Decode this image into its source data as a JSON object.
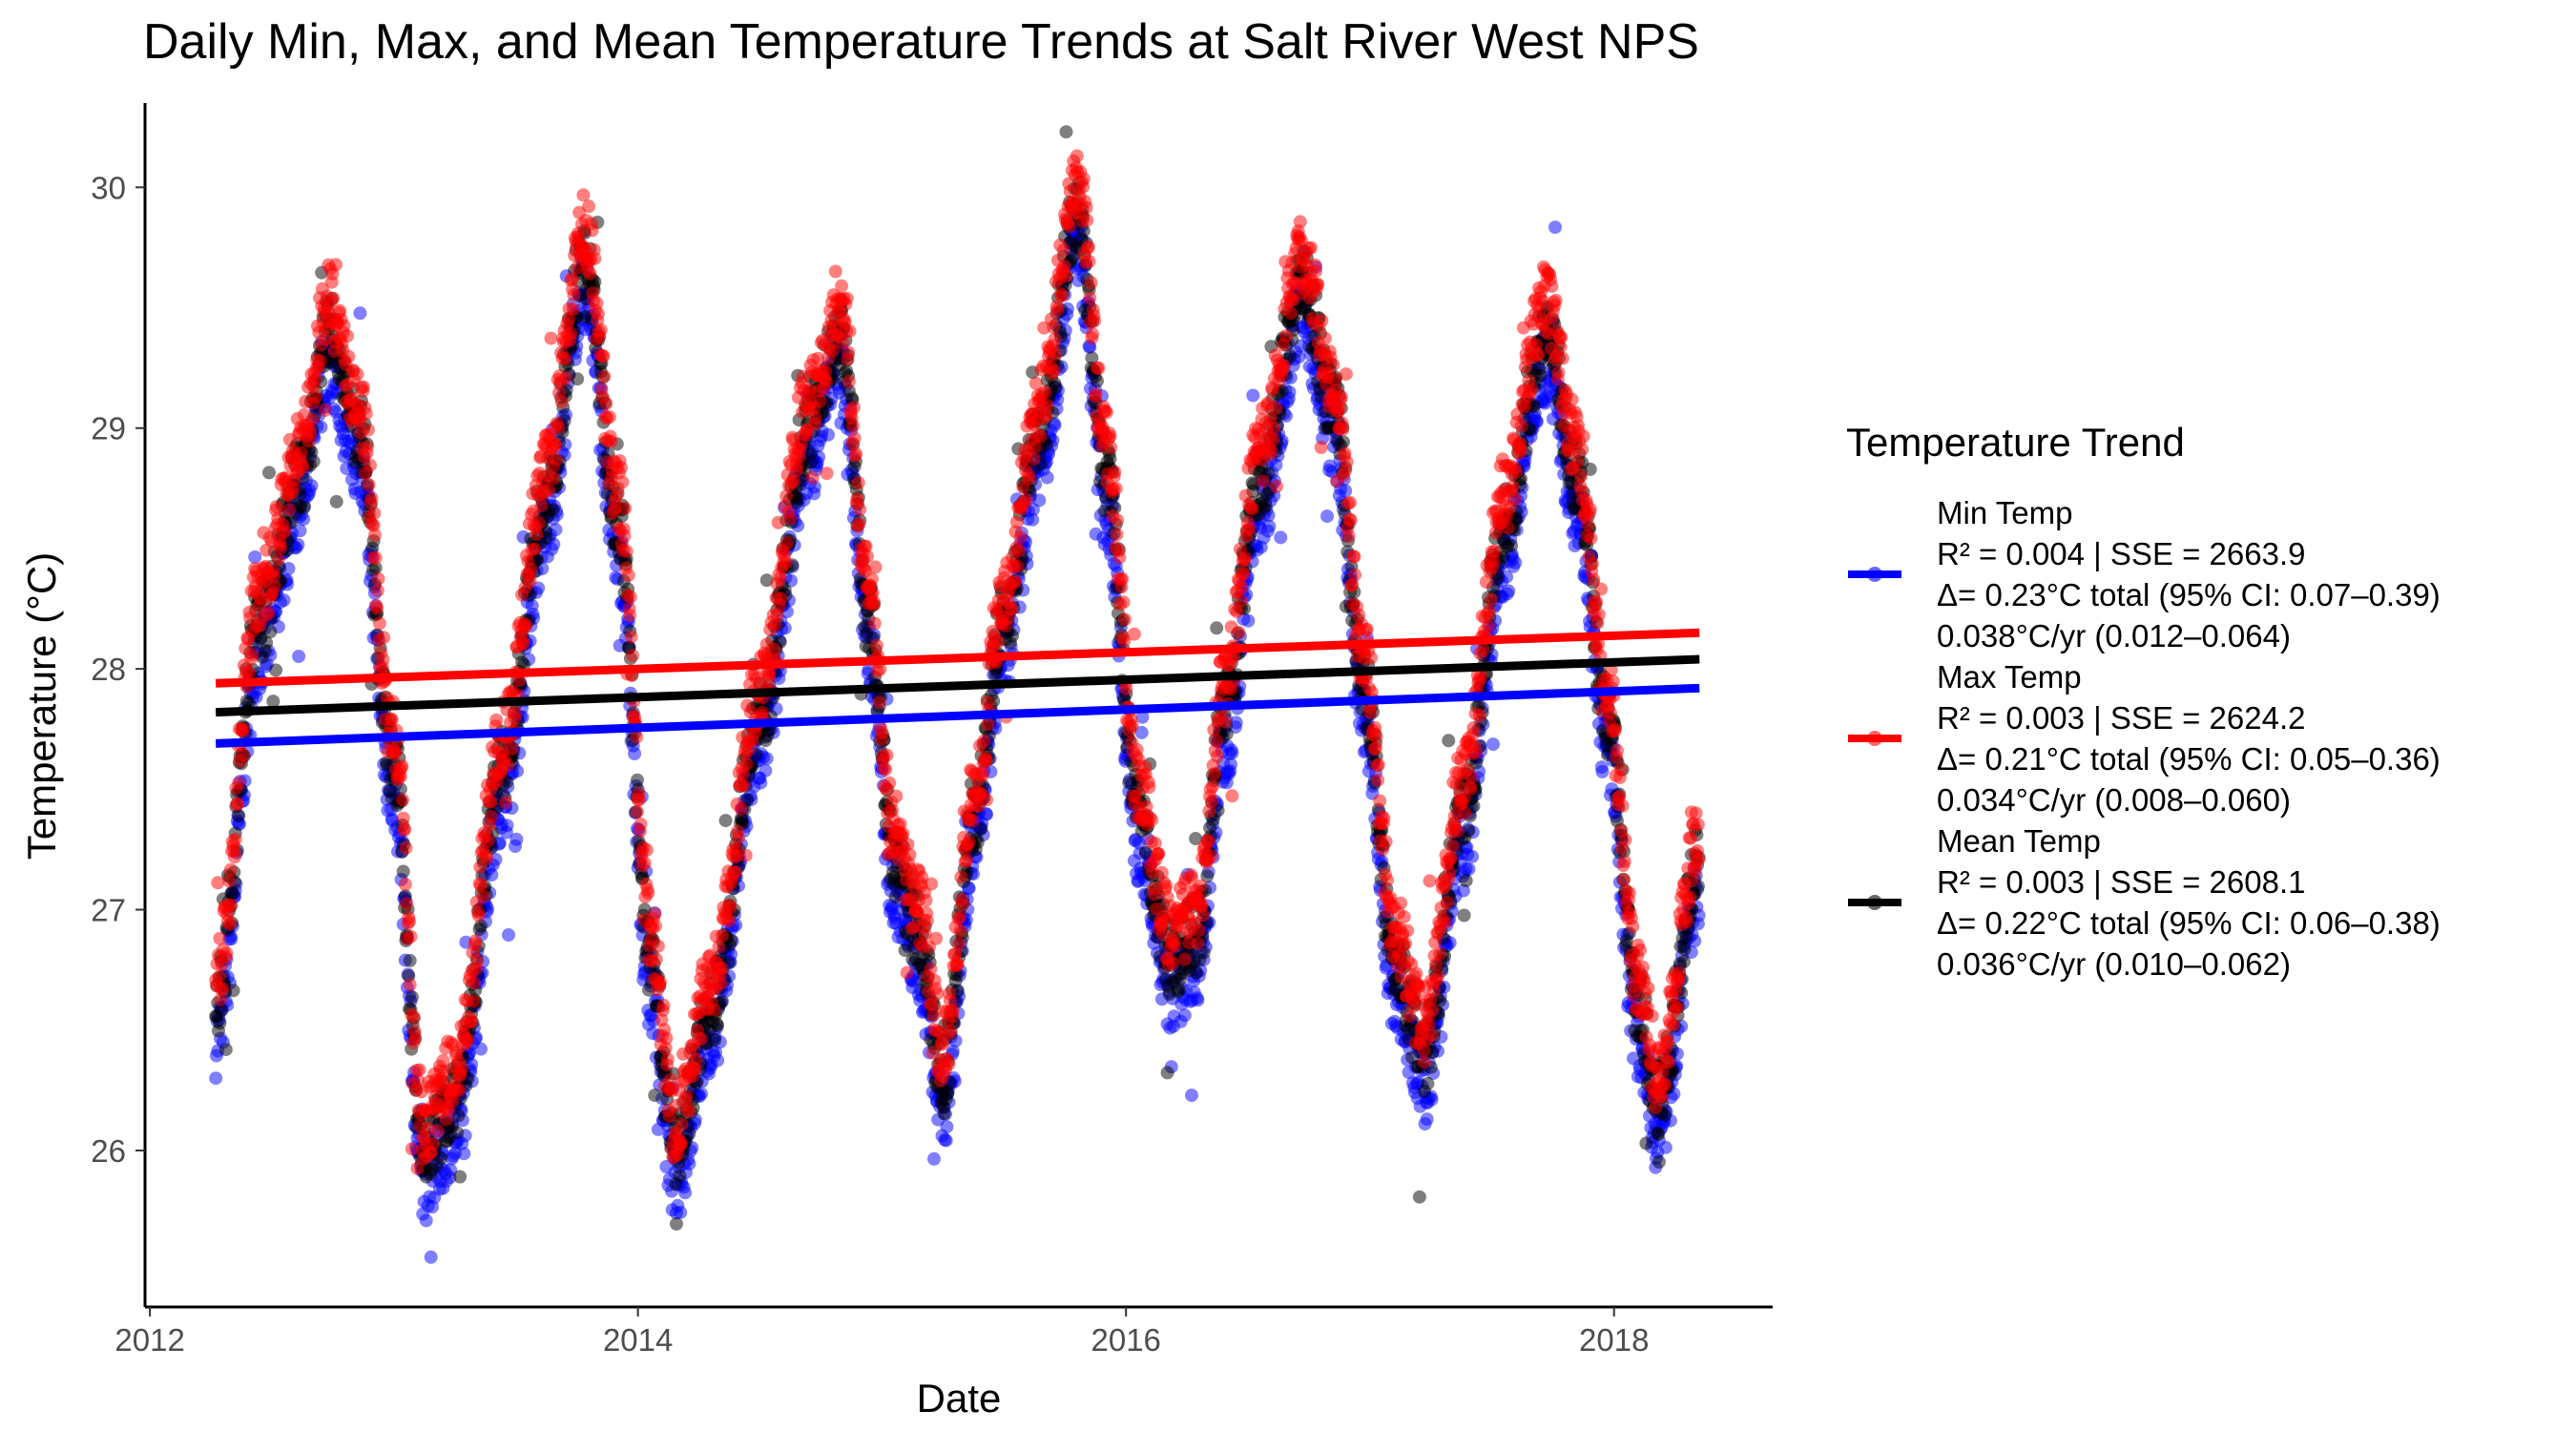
{
  "chart_data": {
    "type": "scatter",
    "title": "Daily Min, Max, and Mean Temperature Trends at Salt River West NPS",
    "xlabel": "Date",
    "ylabel": "Temperature (°C)",
    "x_ticks": [
      "2012",
      "2014",
      "2016",
      "2018"
    ],
    "x_tick_values": [
      2012.0,
      2014.0,
      2016.0,
      2018.0
    ],
    "y_ticks": [
      "26",
      "27",
      "28",
      "29",
      "30"
    ],
    "y_tick_values": [
      26,
      27,
      28,
      29,
      30
    ],
    "xlim": [
      2011.98,
      2018.65
    ],
    "ylim": [
      25.35,
      30.35
    ],
    "grid": false,
    "legend_position": "right",
    "legend_title": "Temperature Trend",
    "seasonal_profile": {
      "description_points": [
        {
          "x": 2012.27,
          "y": 26.6
        },
        {
          "x": 2012.45,
          "y": 28.2
        },
        {
          "x": 2012.62,
          "y": 28.8
        },
        {
          "x": 2012.73,
          "y": 29.4
        },
        {
          "x": 2012.85,
          "y": 29.0
        },
        {
          "x": 2013.0,
          "y": 27.6
        },
        {
          "x": 2013.12,
          "y": 26.0
        },
        {
          "x": 2013.25,
          "y": 26.2
        },
        {
          "x": 2013.45,
          "y": 27.6
        },
        {
          "x": 2013.62,
          "y": 28.7
        },
        {
          "x": 2013.78,
          "y": 29.7
        },
        {
          "x": 2013.92,
          "y": 28.6
        },
        {
          "x": 2014.05,
          "y": 26.8
        },
        {
          "x": 2014.15,
          "y": 26.0
        },
        {
          "x": 2014.3,
          "y": 26.6
        },
        {
          "x": 2014.5,
          "y": 27.8
        },
        {
          "x": 2014.7,
          "y": 29.0
        },
        {
          "x": 2014.83,
          "y": 29.4
        },
        {
          "x": 2014.95,
          "y": 28.2
        },
        {
          "x": 2015.05,
          "y": 27.2
        },
        {
          "x": 2015.15,
          "y": 26.9
        },
        {
          "x": 2015.25,
          "y": 26.3
        },
        {
          "x": 2015.38,
          "y": 27.4
        },
        {
          "x": 2015.5,
          "y": 28.2
        },
        {
          "x": 2015.65,
          "y": 29.0
        },
        {
          "x": 2015.8,
          "y": 29.9
        },
        {
          "x": 2015.92,
          "y": 28.8
        },
        {
          "x": 2016.05,
          "y": 27.4
        },
        {
          "x": 2016.18,
          "y": 26.8
        },
        {
          "x": 2016.3,
          "y": 26.9
        },
        {
          "x": 2016.4,
          "y": 27.8
        },
        {
          "x": 2016.55,
          "y": 28.8
        },
        {
          "x": 2016.72,
          "y": 29.6
        },
        {
          "x": 2016.85,
          "y": 29.1
        },
        {
          "x": 2016.98,
          "y": 27.9
        },
        {
          "x": 2017.1,
          "y": 26.8
        },
        {
          "x": 2017.22,
          "y": 26.4
        },
        {
          "x": 2017.38,
          "y": 27.4
        },
        {
          "x": 2017.55,
          "y": 28.6
        },
        {
          "x": 2017.72,
          "y": 29.4
        },
        {
          "x": 2017.85,
          "y": 28.8
        },
        {
          "x": 2017.97,
          "y": 27.8
        },
        {
          "x": 2018.1,
          "y": 26.6
        },
        {
          "x": 2018.18,
          "y": 26.2
        },
        {
          "x": 2018.35,
          "y": 27.2
        }
      ]
    },
    "series": [
      {
        "name": "Min Temp",
        "color": "#0000ff",
        "offset_from_mean": -0.14,
        "legend_lines": [
          "R² = 0.004 | SSE = 2663.9",
          "Δ= 0.23°C total (95% CI: 0.07–0.39)",
          "0.038°C/yr (0.012–0.064)"
        ],
        "trend": {
          "x": [
            2012.27,
            2018.35
          ],
          "y": [
            27.69,
            27.92
          ]
        }
      },
      {
        "name": "Max Temp",
        "color": "#ff0000",
        "offset_from_mean": 0.12,
        "legend_lines": [
          "R² = 0.003 | SSE = 2624.2",
          "Δ= 0.21°C total (95% CI: 0.05–0.36)",
          "0.034°C/yr (0.008–0.060)"
        ],
        "trend": {
          "x": [
            2012.27,
            2018.35
          ],
          "y": [
            27.94,
            28.15
          ]
        }
      },
      {
        "name": "Mean Temp",
        "color": "#000000",
        "offset_from_mean": 0.0,
        "legend_lines": [
          "R² = 0.003 | SSE = 2608.1",
          "Δ= 0.22°C total (95% CI: 0.06–0.38)",
          "0.036°C/yr (0.010–0.062)"
        ],
        "trend": {
          "x": [
            2012.27,
            2018.35
          ],
          "y": [
            27.82,
            28.04
          ]
        }
      }
    ]
  }
}
